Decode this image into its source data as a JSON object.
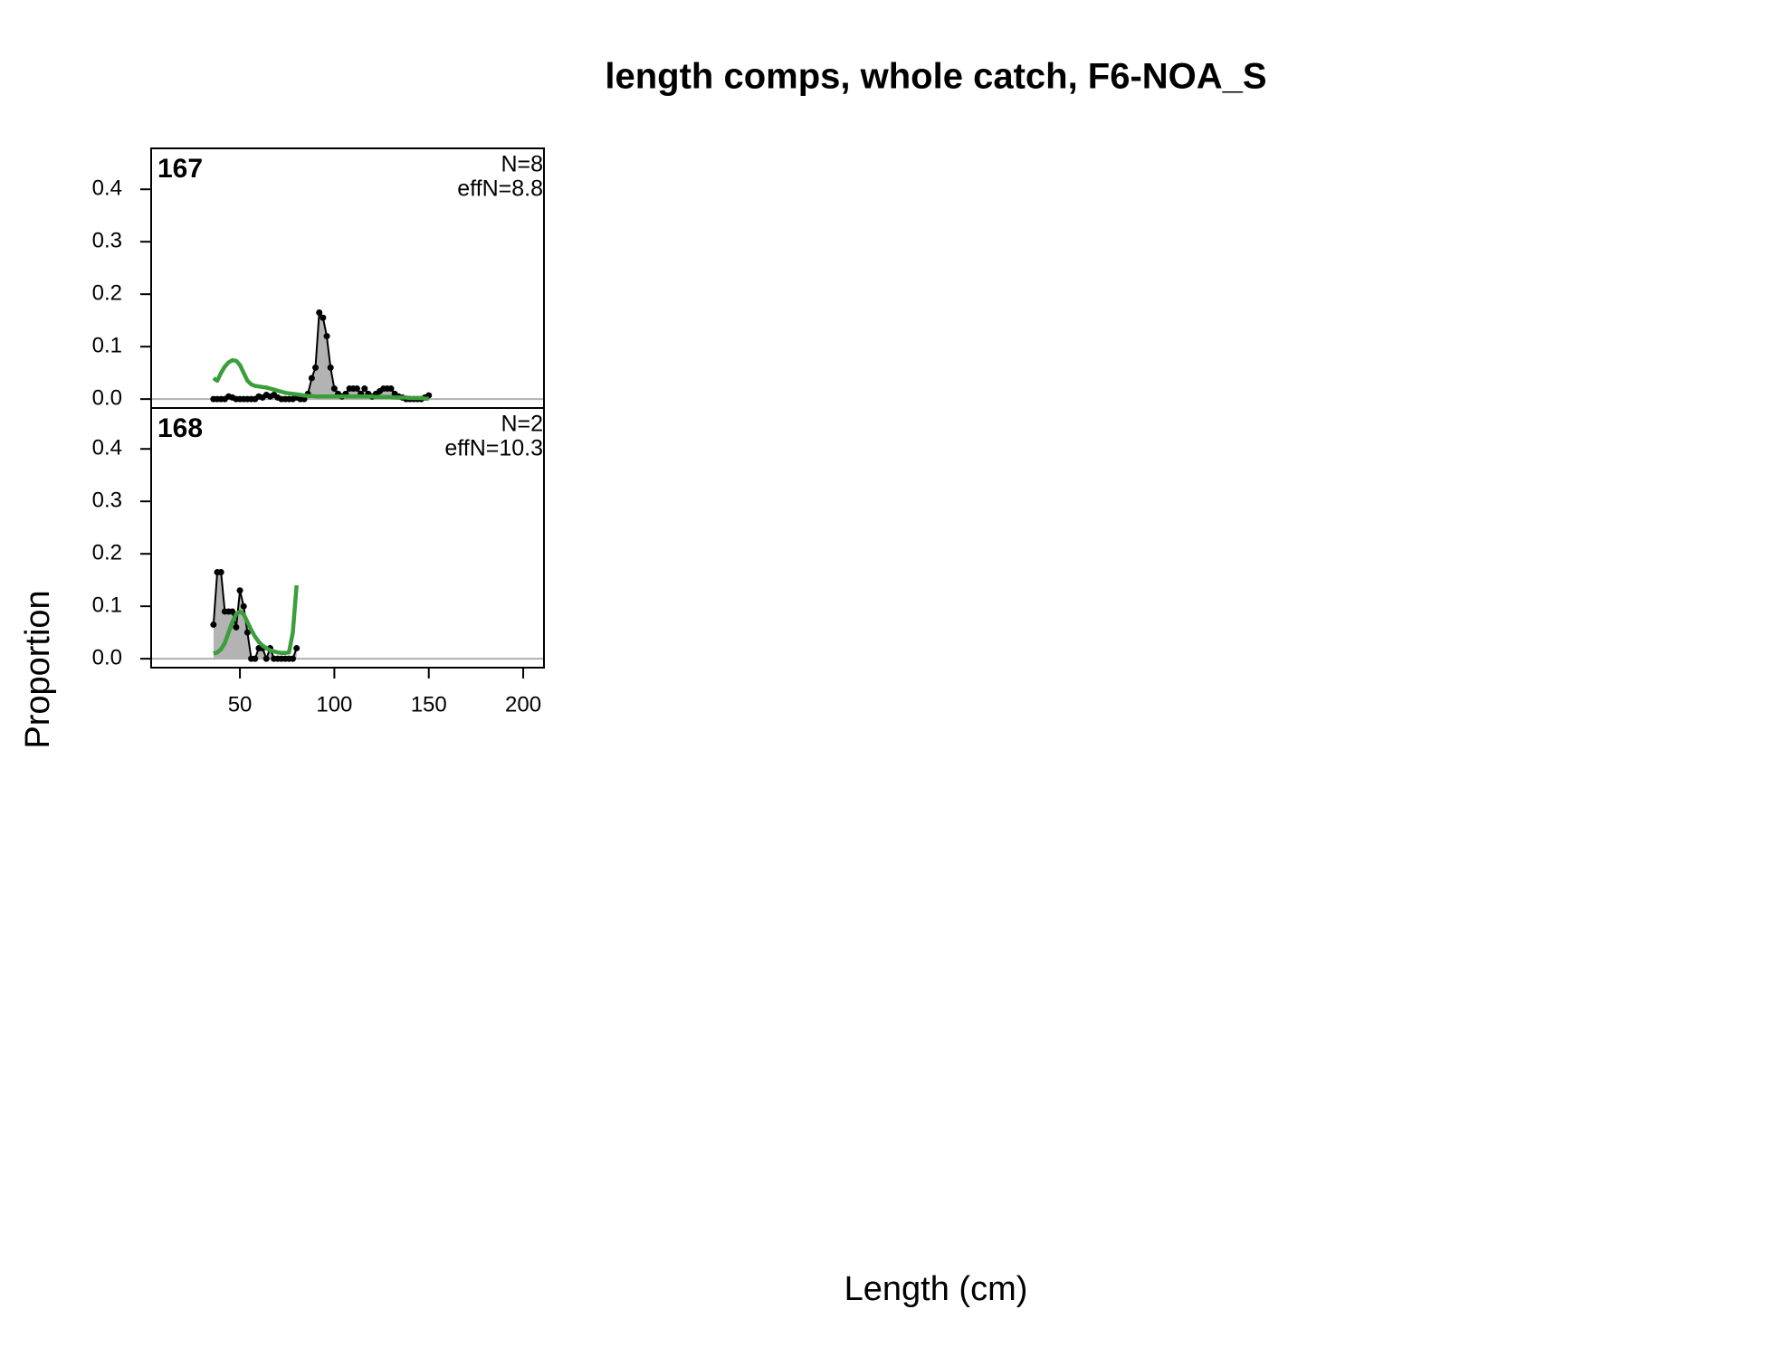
{
  "title": "length comps, whole catch, F6-NOA_S",
  "x_label": "Length (cm)",
  "y_label": "Proportion",
  "chart_data": [
    {
      "type": "line",
      "label": "167",
      "annotations": [
        "N=8",
        "effN=8.8"
      ],
      "x": [
        36,
        38,
        40,
        42,
        44,
        46,
        48,
        50,
        52,
        54,
        56,
        58,
        60,
        62,
        64,
        66,
        68,
        70,
        72,
        74,
        76,
        78,
        80,
        82,
        84,
        86,
        88,
        90,
        92,
        94,
        96,
        98,
        100,
        102,
        104,
        106,
        108,
        110,
        112,
        114,
        116,
        118,
        120,
        122,
        124,
        126,
        128,
        130,
        132,
        134,
        136,
        138,
        140,
        142,
        144,
        146,
        148,
        150
      ],
      "series": [
        {
          "color": "#000000",
          "fill": "#b3b3b3",
          "markers": true,
          "values": [
            0,
            0,
            0,
            0,
            0.005,
            0.003,
            0,
            0,
            0,
            0,
            0,
            0,
            0.005,
            0.003,
            0.008,
            0.005,
            0.008,
            0.003,
            0,
            0,
            0,
            0,
            0.003,
            0,
            0,
            0.01,
            0.04,
            0.06,
            0.165,
            0.155,
            0.12,
            0.06,
            0.02,
            0.01,
            0.005,
            0.01,
            0.02,
            0.02,
            0.02,
            0.01,
            0.02,
            0.01,
            0.005,
            0.01,
            0.015,
            0.02,
            0.02,
            0.02,
            0.01,
            0.005,
            0.003,
            0,
            0,
            0,
            0,
            0,
            0.003,
            0.007
          ]
        },
        {
          "color": "#3a9e3a",
          "fill": null,
          "markers": false,
          "values": [
            0.04,
            0.035,
            0.05,
            0.062,
            0.07,
            0.074,
            0.073,
            0.065,
            0.05,
            0.035,
            0.028,
            0.025,
            0.024,
            0.023,
            0.022,
            0.02,
            0.018,
            0.016,
            0.014,
            0.012,
            0.011,
            0.01,
            0.009,
            0.008,
            0.007,
            0.006,
            0.006,
            0.005,
            0.005,
            0.005,
            0.005,
            0.005,
            0.005,
            0.005,
            0.005,
            0.005,
            0.005,
            0.005,
            0.005,
            0.005,
            0.005,
            0.005,
            0.005,
            0.004,
            0.004,
            0.004,
            0.004,
            0.004,
            0.003,
            0.003,
            0.003,
            0.003,
            0.002,
            0.002,
            0.002,
            0.002,
            0.001,
            0.001
          ]
        }
      ],
      "xlim": [
        3,
        211
      ],
      "ylim": [
        -0.017,
        0.478
      ],
      "yticks": [
        {
          "value": 0,
          "label": "0.0"
        },
        0.1,
        0.2,
        0.3,
        0.4
      ]
    },
    {
      "type": "line",
      "label": "168",
      "annotations": [
        "N=2",
        "effN=10.3"
      ],
      "x": [
        36,
        38,
        40,
        42,
        44,
        46,
        48,
        50,
        52,
        54,
        56,
        58,
        60,
        62,
        64,
        66,
        68,
        70,
        72,
        74,
        76,
        78,
        80
      ],
      "series": [
        {
          "color": "#000000",
          "fill": "#b3b3b3",
          "markers": true,
          "values": [
            0.065,
            0.165,
            0.165,
            0.09,
            0.09,
            0.09,
            0.06,
            0.13,
            0.1,
            0.05,
            0,
            0,
            0.02,
            0.02,
            0,
            0.02,
            0,
            0,
            0,
            0,
            0,
            0,
            0.02
          ]
        },
        {
          "color": "#3a9e3a",
          "fill": null,
          "markers": false,
          "values": [
            0.01,
            0.012,
            0.018,
            0.03,
            0.05,
            0.07,
            0.085,
            0.09,
            0.085,
            0.07,
            0.055,
            0.042,
            0.032,
            0.025,
            0.02,
            0.016,
            0.014,
            0.012,
            0.011,
            0.011,
            0.012,
            0.05,
            0.14
          ]
        }
      ],
      "xlim": [
        3,
        211
      ],
      "ylim": [
        -0.017,
        0.478
      ],
      "yticks": [
        {
          "value": 0,
          "label": "0.0"
        },
        0.1,
        0.2,
        0.3,
        0.4
      ],
      "xticks": [
        50,
        100,
        150,
        200
      ]
    }
  ]
}
